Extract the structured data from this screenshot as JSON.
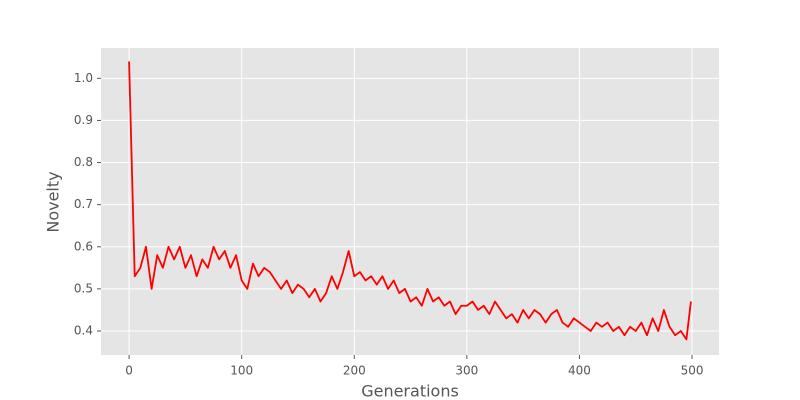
{
  "chart_data": {
    "type": "line",
    "x_label": "Generations",
    "y_label": "Novelty",
    "x": [
      0,
      5,
      10,
      15,
      20,
      25,
      30,
      35,
      40,
      45,
      50,
      55,
      60,
      65,
      70,
      75,
      80,
      85,
      90,
      95,
      100,
      105,
      110,
      115,
      120,
      125,
      130,
      135,
      140,
      145,
      150,
      155,
      160,
      165,
      170,
      175,
      180,
      185,
      190,
      195,
      200,
      205,
      210,
      215,
      220,
      225,
      230,
      235,
      240,
      245,
      250,
      255,
      260,
      265,
      270,
      275,
      280,
      285,
      290,
      295,
      300,
      305,
      310,
      315,
      320,
      325,
      330,
      335,
      340,
      345,
      350,
      355,
      360,
      365,
      370,
      375,
      380,
      385,
      390,
      395,
      400,
      405,
      410,
      415,
      420,
      425,
      430,
      435,
      440,
      445,
      450,
      455,
      460,
      465,
      470,
      475,
      480,
      485,
      490,
      495,
      499
    ],
    "series": [
      {
        "name": "Novelty",
        "color": "#ff0000",
        "values": [
          1.04,
          0.53,
          0.55,
          0.6,
          0.5,
          0.58,
          0.55,
          0.6,
          0.57,
          0.6,
          0.55,
          0.58,
          0.53,
          0.57,
          0.55,
          0.6,
          0.57,
          0.59,
          0.55,
          0.58,
          0.52,
          0.5,
          0.56,
          0.53,
          0.55,
          0.54,
          0.52,
          0.5,
          0.52,
          0.49,
          0.51,
          0.5,
          0.48,
          0.5,
          0.47,
          0.49,
          0.53,
          0.5,
          0.54,
          0.59,
          0.53,
          0.54,
          0.52,
          0.53,
          0.51,
          0.53,
          0.5,
          0.52,
          0.49,
          0.5,
          0.47,
          0.48,
          0.46,
          0.5,
          0.47,
          0.48,
          0.46,
          0.47,
          0.44,
          0.46,
          0.46,
          0.47,
          0.45,
          0.46,
          0.44,
          0.47,
          0.45,
          0.43,
          0.44,
          0.42,
          0.45,
          0.43,
          0.45,
          0.44,
          0.42,
          0.44,
          0.45,
          0.42,
          0.41,
          0.43,
          0.42,
          0.41,
          0.4,
          0.42,
          0.41,
          0.42,
          0.4,
          0.41,
          0.39,
          0.41,
          0.4,
          0.42,
          0.39,
          0.43,
          0.4,
          0.45,
          0.41,
          0.39,
          0.4,
          0.38,
          0.47
        ]
      }
    ],
    "xlim": [
      -24.95,
      523.95
    ],
    "xticks": [
      0,
      100,
      200,
      300,
      400,
      500
    ],
    "ylim": [
      0.343,
      1.072
    ],
    "yticks": [
      0.4,
      0.5,
      0.6,
      0.7,
      0.8,
      0.9,
      {
        "value": 1,
        "label": "1.0"
      }
    ],
    "grid": true,
    "background": "#e5e5e5"
  }
}
